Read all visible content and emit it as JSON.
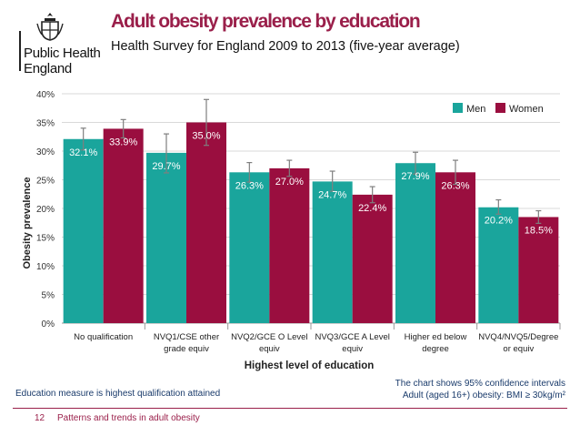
{
  "logo": {
    "line1": "Public Health",
    "line2": "England"
  },
  "header": {
    "title": "Adult obesity prevalence by education",
    "subtitle": "Health Survey for England 2009 to 2013 (five-year average)"
  },
  "colors": {
    "men": "#1aa59c",
    "women": "#9a0e3f",
    "accent": "#9a1f4a"
  },
  "chart_data": {
    "type": "bar",
    "title": "",
    "xlabel": "Highest level of education",
    "ylabel": "Obesity prevalence",
    "ylim": [
      0,
      40
    ],
    "yticks": [
      "0%",
      "5%",
      "10%",
      "15%",
      "20%",
      "25%",
      "30%",
      "35%",
      "40%"
    ],
    "categories": [
      [
        "No qualification"
      ],
      [
        "NVQ1/CSE other",
        "grade equiv"
      ],
      [
        "NVQ2/GCE O Level",
        "equiv"
      ],
      [
        "NVQ3/GCE A Level",
        "equiv"
      ],
      [
        "Higher ed below",
        "degree"
      ],
      [
        "NVQ4/NVQ5/Degree",
        "or equiv"
      ]
    ],
    "series": [
      {
        "name": "Men",
        "values": [
          32.1,
          29.7,
          26.3,
          24.7,
          27.9,
          20.2
        ],
        "labels": [
          "32.1%",
          "29.7%",
          "26.3%",
          "24.7%",
          "27.9%",
          "20.2%"
        ],
        "ci_low": [
          30.2,
          26.2,
          24.6,
          23.0,
          26.0,
          19.0
        ],
        "ci_high": [
          34.0,
          33.0,
          28.0,
          26.5,
          29.8,
          21.5
        ]
      },
      {
        "name": "Women",
        "values": [
          33.9,
          35.0,
          27.0,
          22.4,
          26.3,
          18.5
        ],
        "labels": [
          "33.9%",
          "35.0%",
          "27.0%",
          "22.4%",
          "26.3%",
          "18.5%"
        ],
        "ci_low": [
          32.3,
          31.0,
          25.6,
          21.0,
          24.2,
          17.4
        ],
        "ci_high": [
          35.5,
          39.0,
          28.4,
          23.8,
          28.4,
          19.6
        ]
      }
    ],
    "legend": {
      "men": "Men",
      "women": "Women",
      "placement": "top-right"
    }
  },
  "notes": {
    "left": "Education measure is highest qualification attained",
    "right_line1": "The chart shows 95% confidence intervals",
    "right_line2": "Adult (aged 16+) obesity: BMI ≥ 30kg/m²"
  },
  "footer": {
    "page_number": "12",
    "text": "Patterns and trends in adult obesity"
  }
}
